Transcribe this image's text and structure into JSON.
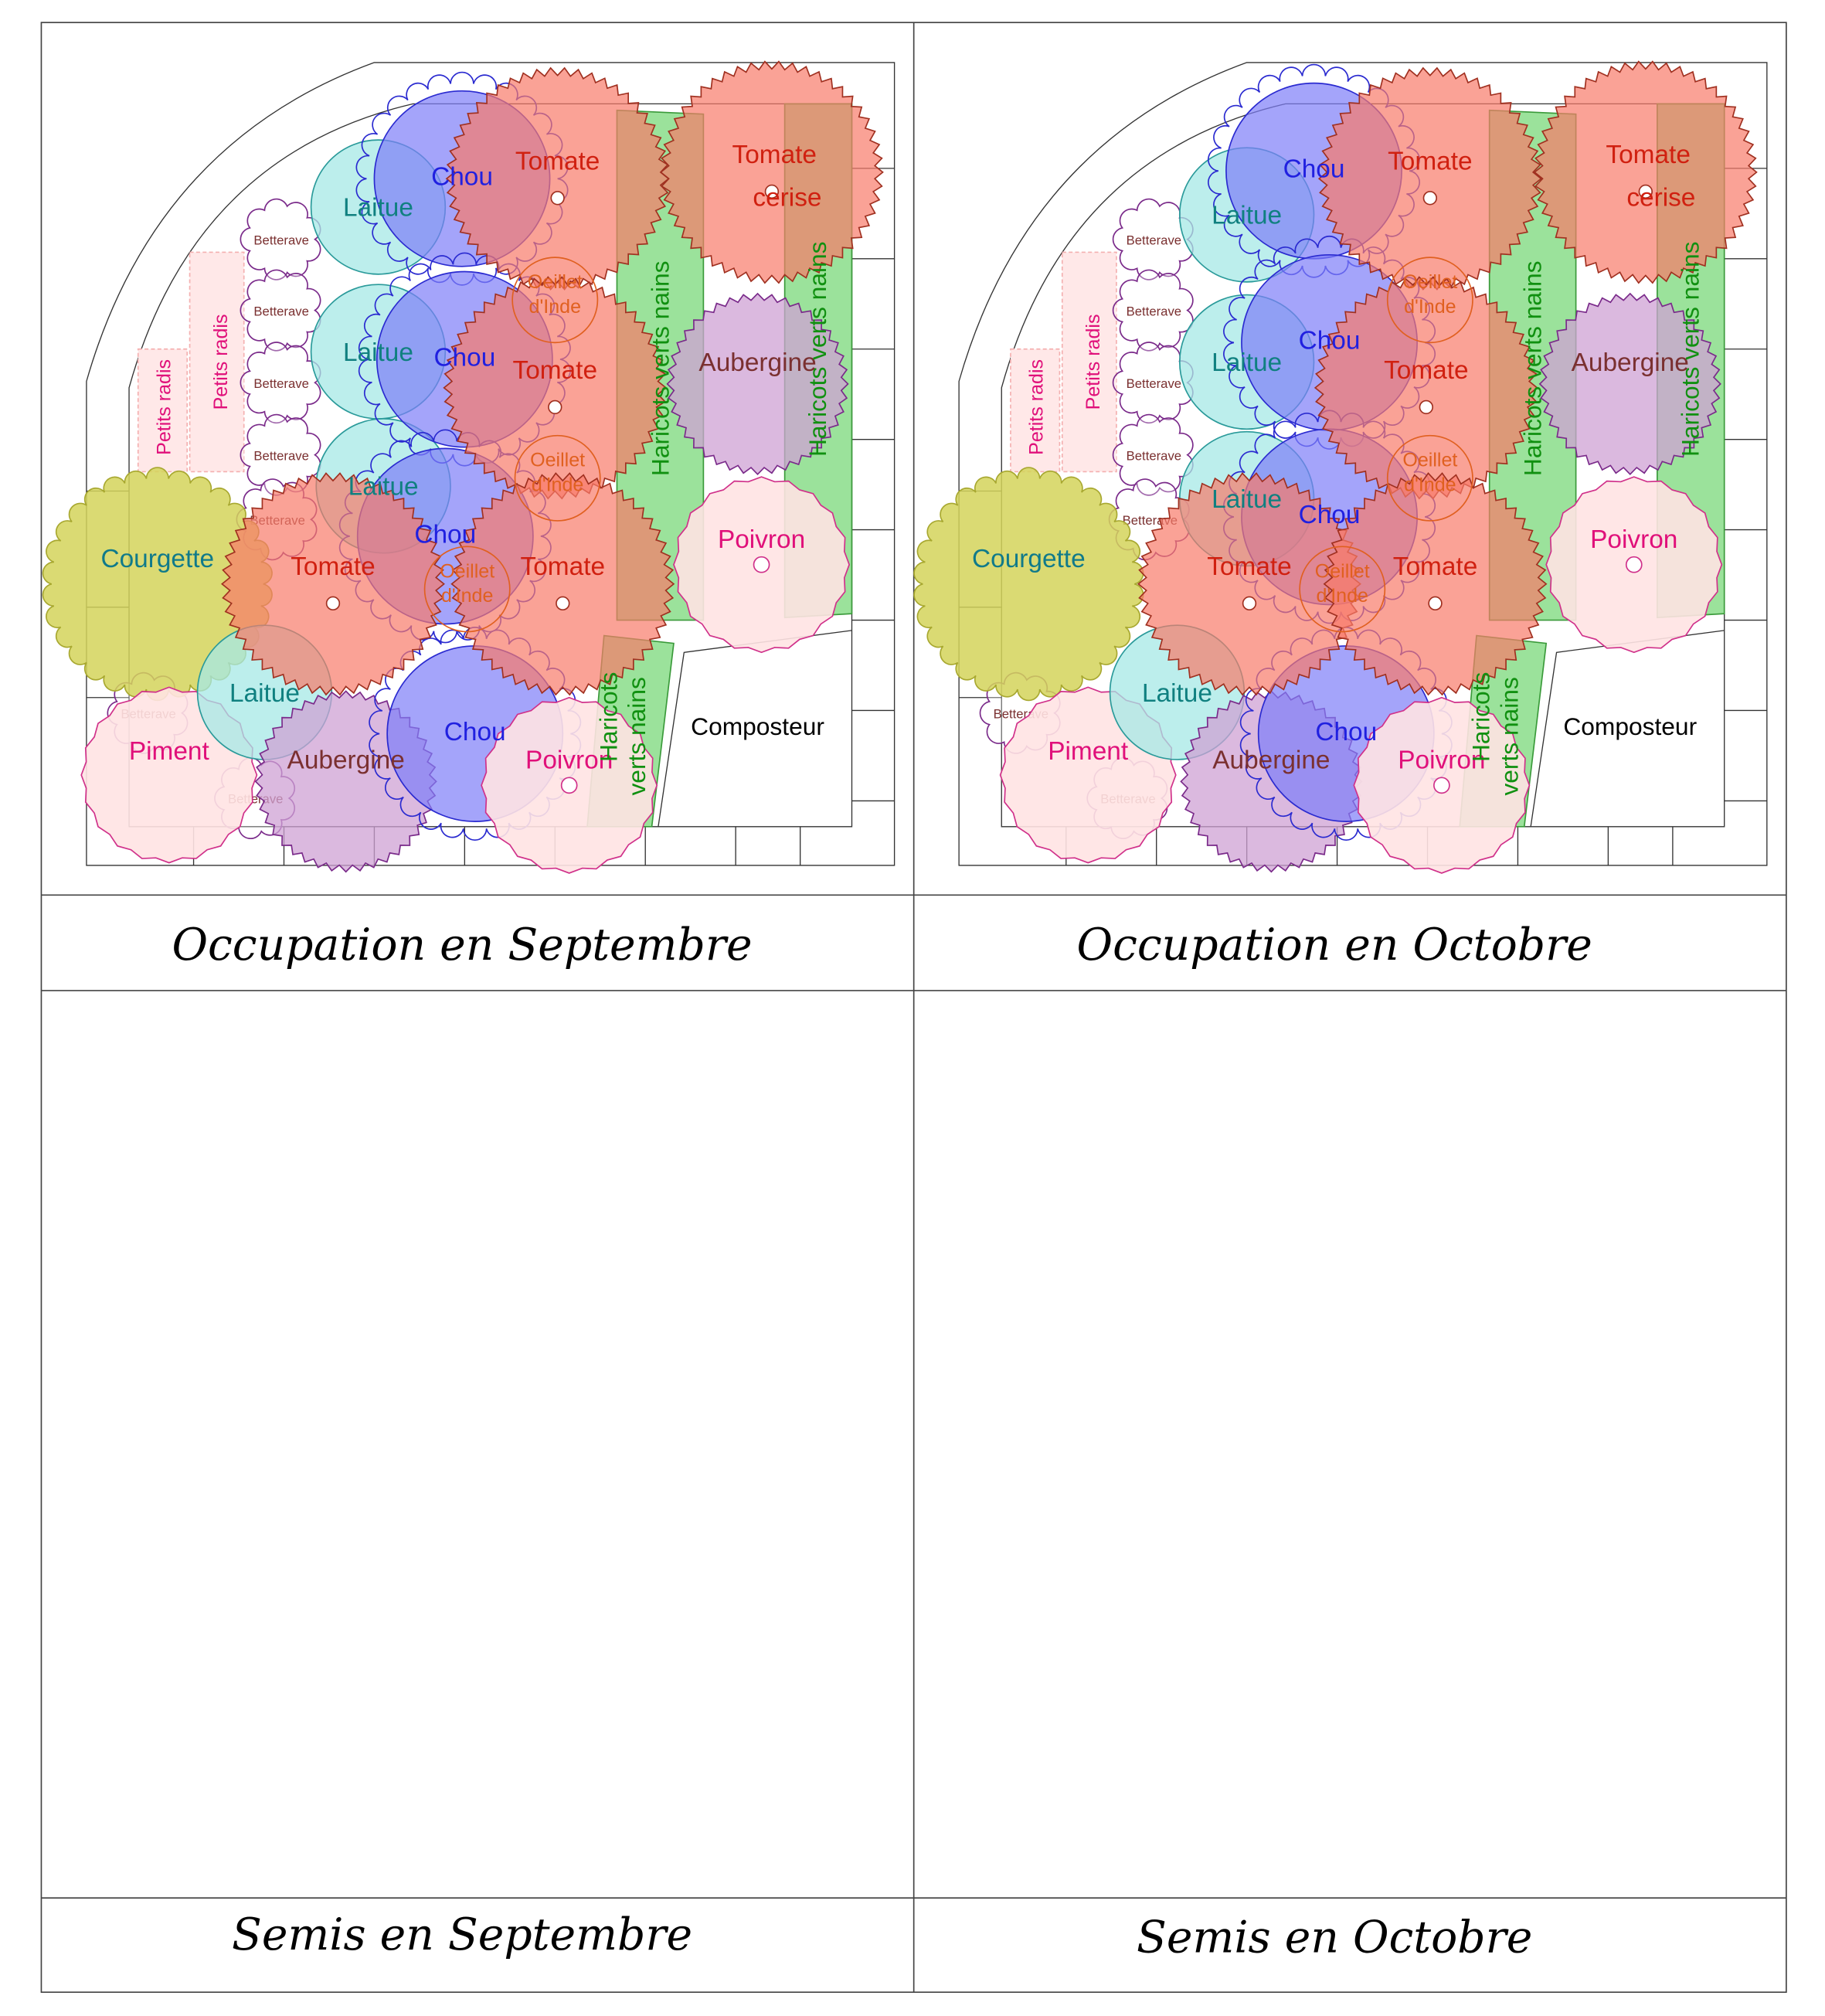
{
  "panels": [
    {
      "caption": "Occupation en Septembre"
    },
    {
      "caption": "Occupation en Octobre"
    },
    {
      "caption": "Semis en Septembre"
    },
    {
      "caption": "Semis en Octobre"
    }
  ],
  "labels": {
    "tomate": "Tomate",
    "tomate_cerise_1": "Tomate",
    "tomate_cerise_2": "cerise",
    "chou": "Chou",
    "laitue": "Laitue",
    "aubergine": "Aubergine",
    "poivron": "Poivron",
    "piment": "Piment",
    "courgette": "Courgette",
    "oeillet_1": "Oeillet",
    "oeillet_2": "d'Inde",
    "haricots": "Haricots verts nains",
    "haricots_1": "Haricots",
    "haricots_2": "verts nains",
    "betterave": "Betterave",
    "radis": "Petits radis",
    "composteur": "Composteur"
  },
  "colors": {
    "tomate": "#f87a6a",
    "chou": "#7d7df8",
    "laitue": "#a6e8e6",
    "aubergine": "#cfa2d4",
    "poivron": "#ffe3e3",
    "courgette": "#d4d35a",
    "haricots": "#79d879",
    "radis": "#ffe8e8"
  }
}
